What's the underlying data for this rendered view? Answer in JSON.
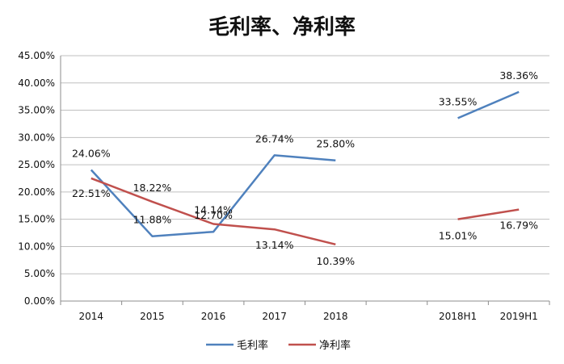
{
  "chart_data": {
    "type": "line",
    "title": "毛利率、净利率",
    "categories": [
      "2014",
      "2015",
      "2016",
      "2017",
      "2018",
      "",
      "2018H1",
      "2019H1"
    ],
    "ylim": [
      0,
      45
    ],
    "yticks": [
      "0.00%",
      "5.00%",
      "10.00%",
      "15.00%",
      "20.00%",
      "25.00%",
      "30.00%",
      "35.00%",
      "40.00%",
      "45.00%"
    ],
    "grid": true,
    "legend_position": "bottom",
    "series": [
      {
        "name": "毛利率",
        "color": "#4f81bd",
        "values": [
          24.06,
          11.88,
          12.7,
          26.74,
          25.8,
          null,
          33.55,
          38.36
        ],
        "labels": [
          "24.06%",
          "11.88%",
          "12.70%",
          "26.74%",
          "25.80%",
          "",
          "33.55%",
          "38.36%"
        ]
      },
      {
        "name": "净利率",
        "color": "#c0504d",
        "values": [
          22.51,
          18.22,
          14.14,
          13.14,
          10.39,
          null,
          15.01,
          16.79
        ],
        "labels": [
          "22.51%",
          "18.22%",
          "14.14%",
          "13.14%",
          "10.39%",
          "",
          "15.01%",
          "16.79%"
        ]
      }
    ]
  }
}
